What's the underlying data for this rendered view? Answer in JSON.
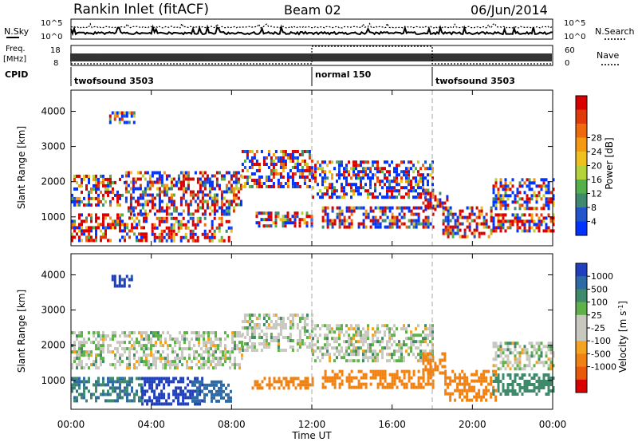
{
  "header": {
    "station": "Rankin Inlet (fitACF)",
    "beam": "Beam 02",
    "date": "06/Jun/2014"
  },
  "noise_panel": {
    "left_label": "N.Sky",
    "right_label": "N.Search",
    "left_ticks": [
      "10^5",
      "10^0"
    ],
    "right_ticks": [
      "10^5",
      "10^0"
    ]
  },
  "freq_panel": {
    "left_label_line1": "Freq.",
    "left_label_line2": "[MHz]",
    "right_label": "Nave",
    "left_ticks": [
      "18",
      "8"
    ],
    "right_ticks": [
      "60",
      "0"
    ],
    "nave_high_interval": [
      12,
      18
    ]
  },
  "cpid": {
    "label": "CPID",
    "segments": [
      {
        "start": 0,
        "end": 12,
        "text": "twofsound 3503"
      },
      {
        "start": 12,
        "end": 18,
        "text": "normal 150"
      },
      {
        "start": 18,
        "end": 24,
        "text": "twofsound 3503"
      }
    ]
  },
  "power_panel": {
    "ylabel": "Slant Range [km]",
    "yticks": [
      "1000",
      "2000",
      "3000",
      "4000"
    ],
    "colorbar_label": "Power [dB]",
    "colorbar_ticks": [
      "4",
      "8",
      "12",
      "16",
      "20",
      "24",
      "28"
    ],
    "colors": [
      "#0033ff",
      "#2255cc",
      "#3f8a6f",
      "#53b04b",
      "#b4d23c",
      "#f0c020",
      "#f39a12",
      "#ee6a0d",
      "#e03a0a",
      "#d90000"
    ]
  },
  "velocity_panel": {
    "ylabel": "Slant Range [km]",
    "yticks": [
      "1000",
      "2000",
      "3000",
      "4000"
    ],
    "colorbar_label": "Velocity [m s",
    "colorbar_label_sup": "-1",
    "colorbar_label_end": "]",
    "colorbar_ticks": [
      "1000",
      "500",
      "100",
      "25",
      "-25",
      "-100",
      "-500",
      "-1000"
    ],
    "colors": [
      "#1f3fbf",
      "#2e6aa5",
      "#3e8a6b",
      "#5fb24a",
      "#c8c8c0",
      "#c8c8c0",
      "#f5a323",
      "#f08214",
      "#e85a0a",
      "#d90000"
    ]
  },
  "xaxis": {
    "label": "Time UT",
    "ticks": [
      "00:00",
      "04:00",
      "08:00",
      "12:00",
      "16:00",
      "20:00",
      "00:00"
    ]
  },
  "chart_data": [
    {
      "type": "heatmap",
      "title": "Rankin Inlet (fitACF) Beam 02 06/Jun/2014",
      "quantity": "Power",
      "unit": "dB",
      "x_unit": "hours UT",
      "xlim": [
        0,
        24
      ],
      "ylim": [
        180,
        4600
      ],
      "zlim": [
        0,
        30
      ],
      "regions": [
        {
          "x": [
            0,
            2.7
          ],
          "y": [
            1300,
            2200
          ],
          "value": 14
        },
        {
          "x": [
            0,
            3.7
          ],
          "y": [
            350,
            1100
          ],
          "value": 24
        },
        {
          "x": [
            2.7,
            8.5
          ],
          "y": [
            1100,
            2300
          ],
          "value": 16
        },
        {
          "x": [
            4,
            8
          ],
          "y": [
            350,
            1000
          ],
          "value": 24
        },
        {
          "x": [
            8.5,
            12
          ],
          "y": [
            1900,
            2900
          ],
          "value": 13
        },
        {
          "x": [
            9.2,
            12
          ],
          "y": [
            750,
            1150
          ],
          "value": 18
        },
        {
          "x": [
            12,
            18
          ],
          "y": [
            1600,
            2600
          ],
          "value": 10
        },
        {
          "x": [
            12.5,
            18
          ],
          "y": [
            700,
            1300
          ],
          "value": 16
        },
        {
          "x": [
            17.5,
            18.8
          ],
          "y": [
            1200,
            1800
          ],
          "value": 22
        },
        {
          "x": [
            18.5,
            21
          ],
          "y": [
            400,
            1300
          ],
          "value": 22
        },
        {
          "x": [
            21,
            24
          ],
          "y": [
            600,
            1100
          ],
          "value": 22
        },
        {
          "x": [
            21,
            24
          ],
          "y": [
            1200,
            2100
          ],
          "value": 10
        },
        {
          "x": [
            1.9,
            3.1
          ],
          "y": [
            3700,
            4000
          ],
          "value": 8
        }
      ]
    },
    {
      "type": "heatmap",
      "title": "Rankin Inlet (fitACF) Beam 02 06/Jun/2014",
      "quantity": "Velocity",
      "unit": "m s^-1",
      "x_unit": "hours UT",
      "xlim": [
        0,
        24
      ],
      "ylim": [
        180,
        4600
      ],
      "zlim": [
        -1000,
        1000
      ],
      "regions": [
        {
          "x": [
            0,
            8.5
          ],
          "y": [
            1400,
            2400
          ],
          "value": 0
        },
        {
          "x": [
            8.5,
            12
          ],
          "y": [
            1900,
            2900
          ],
          "value": 0
        },
        {
          "x": [
            12,
            18
          ],
          "y": [
            1600,
            2600
          ],
          "value": 0
        },
        {
          "x": [
            0,
            3.5
          ],
          "y": [
            400,
            1100
          ],
          "value": 100
        },
        {
          "x": [
            3.5,
            6.5
          ],
          "y": [
            350,
            1100
          ],
          "value": 800
        },
        {
          "x": [
            6,
            8
          ],
          "y": [
            400,
            1000
          ],
          "value": 150
        },
        {
          "x": [
            9,
            12
          ],
          "y": [
            750,
            1100
          ],
          "value": -150
        },
        {
          "x": [
            12.5,
            18
          ],
          "y": [
            800,
            1300
          ],
          "value": -150
        },
        {
          "x": [
            17.5,
            18.8
          ],
          "y": [
            1200,
            1800
          ],
          "value": -200
        },
        {
          "x": [
            18.6,
            21.2
          ],
          "y": [
            450,
            1300
          ],
          "value": -300
        },
        {
          "x": [
            21,
            24
          ],
          "y": [
            600,
            1200
          ],
          "value": 60
        },
        {
          "x": [
            21,
            24
          ],
          "y": [
            1300,
            2100
          ],
          "value": 0
        },
        {
          "x": [
            1.9,
            3.1
          ],
          "y": [
            3700,
            4000
          ],
          "value": 700
        }
      ]
    }
  ]
}
